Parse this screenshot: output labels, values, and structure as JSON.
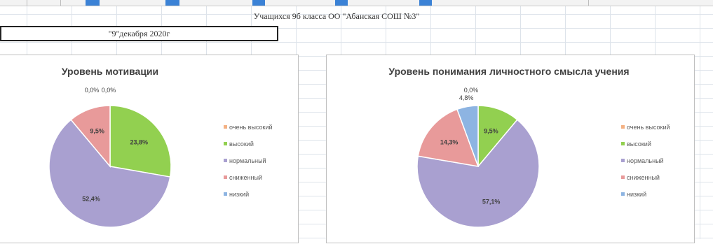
{
  "sheet": {
    "title": "Учащихся 9б класса ОО \"Абанская СОШ №3\"",
    "date": "\"9\"декабря 2020г"
  },
  "colors": {
    "очень высокий": "#f4b183",
    "высокий": "#92d050",
    "нормальный": "#a9a0d0",
    "сниженный": "#e89a9a",
    "низкий": "#8db4e2"
  },
  "chart_data": [
    {
      "type": "pie",
      "title": "Уровень мотивации",
      "legend": "right",
      "categories": [
        "очень высокий",
        "высокий",
        "нормальный",
        "сниженный",
        "низкий"
      ],
      "values": [
        0.0,
        23.8,
        52.4,
        9.5,
        0.0
      ],
      "labels": [
        "0,0%",
        "23,8%",
        "52,4%",
        "9,5%",
        "0,0%"
      ]
    },
    {
      "type": "pie",
      "title": "Уровень понимания личностного смысла учения",
      "legend": "right",
      "categories": [
        "очень высокий",
        "высокий",
        "нормальный",
        "сниженный",
        "низкий"
      ],
      "values": [
        0.0,
        9.5,
        57.1,
        14.3,
        4.8
      ],
      "labels": [
        "0,0%",
        "9,5%",
        "57,1%",
        "14,3%",
        "4,8%"
      ]
    }
  ]
}
